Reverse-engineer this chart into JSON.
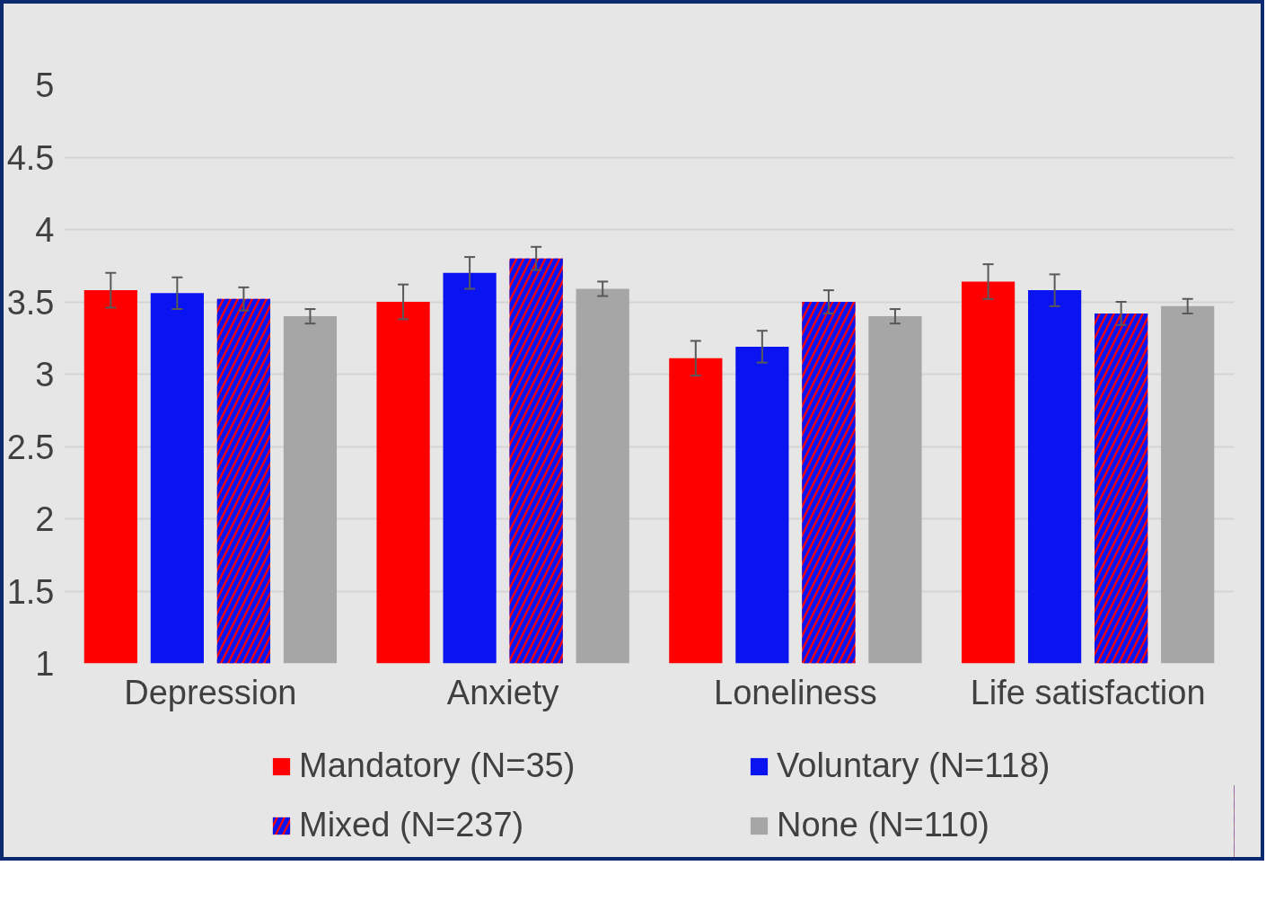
{
  "chart_data": {
    "type": "bar",
    "categories": [
      "Depression",
      "Anxiety",
      "Loneliness",
      "Life satisfaction"
    ],
    "series": [
      {
        "name": "Mandatory (N=35)",
        "color": "#ff0000",
        "values": [
          3.58,
          3.5,
          3.11,
          3.64
        ],
        "errors": [
          0.12,
          0.12,
          0.12,
          0.12
        ]
      },
      {
        "name": "Voluntary (N=118)",
        "color": "#0a14f0",
        "values": [
          3.56,
          3.7,
          3.19,
          3.58
        ],
        "errors": [
          0.11,
          0.11,
          0.11,
          0.11
        ]
      },
      {
        "name": "Mixed (N=237)",
        "color": "#ff0000",
        "values": [
          3.52,
          3.8,
          3.5,
          3.42
        ],
        "errors": [
          0.08,
          0.08,
          0.08,
          0.08
        ]
      },
      {
        "name": "None (N=110)",
        "color": "#a6a6a6",
        "values": [
          3.4,
          3.59,
          3.4,
          3.47
        ],
        "errors": [
          0.05,
          0.05,
          0.05,
          0.05
        ]
      }
    ],
    "ylim": [
      1,
      5
    ],
    "yticks": [
      1,
      1.5,
      2,
      2.5,
      3,
      3.5,
      4,
      4.5,
      5
    ],
    "grid": "y",
    "legend": "bottom"
  }
}
